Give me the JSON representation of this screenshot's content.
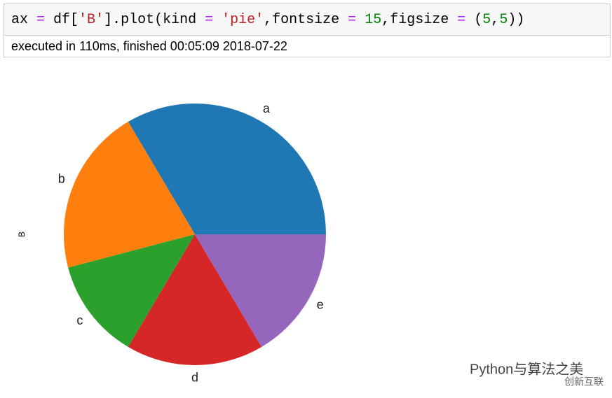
{
  "cell": {
    "code_tokens": [
      "ax",
      " = ",
      "df[",
      "'B'",
      "].plot(kind ",
      "=",
      " ",
      "'pie'",
      ",fontsize ",
      "=",
      " ",
      "15",
      ",figsize ",
      "=",
      " (",
      "5",
      ",",
      "5",
      "))"
    ],
    "status": "executed in 110ms, finished 00:05:09 2018-07-22"
  },
  "chart_data": {
    "type": "pie",
    "ylabel": "B",
    "categories": [
      "a",
      "b",
      "c",
      "d",
      "e"
    ],
    "values": [
      33.5,
      20.6,
      12.4,
      17.0,
      16.5
    ],
    "colors": [
      "#1f77b4",
      "#ff7f0e",
      "#2ca02c",
      "#d62728",
      "#9467bd"
    ]
  },
  "watermark": {
    "text": "Python与算法之美",
    "logo": "创新互联"
  }
}
